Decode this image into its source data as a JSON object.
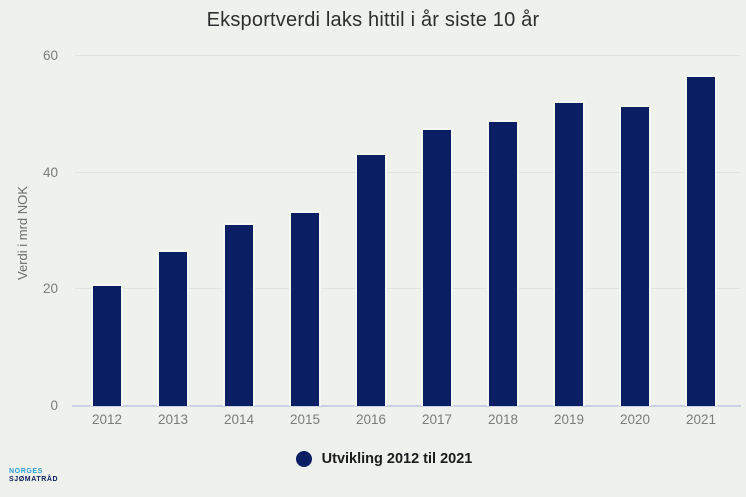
{
  "title": "Eksportverdi laks hittil i år siste 10 år",
  "chart_data": {
    "type": "bar",
    "title": "Eksportverdi laks hittil i år siste 10 år",
    "categories": [
      "2012",
      "2013",
      "2014",
      "2015",
      "2016",
      "2017",
      "2018",
      "2019",
      "2020",
      "2021"
    ],
    "values": [
      20.9,
      26.8,
      31.3,
      33.4,
      43.3,
      47.6,
      49.0,
      52.2,
      51.6,
      56.8
    ],
    "xlabel": "",
    "ylabel": "Verdi i mrd NOK",
    "ylim": [
      0,
      60
    ],
    "yticks": [
      0,
      20,
      40,
      60
    ],
    "grid": true,
    "bar_color": "#0a1f63",
    "legend": {
      "position": "bottom",
      "label": "Utvikling 2012 til 2021"
    }
  },
  "colors": {
    "background": "#eff1ed",
    "bar": "#0a1f63",
    "baseline": "#c9d1e3",
    "gridline": "#e2e4df",
    "tick_text": "#7c7c7c",
    "logo_light_blue": "#2d9fd8",
    "logo_dark_blue": "#0c2264"
  },
  "logo": {
    "line1": "NORGES",
    "line2": "SJØMATRÅD"
  }
}
